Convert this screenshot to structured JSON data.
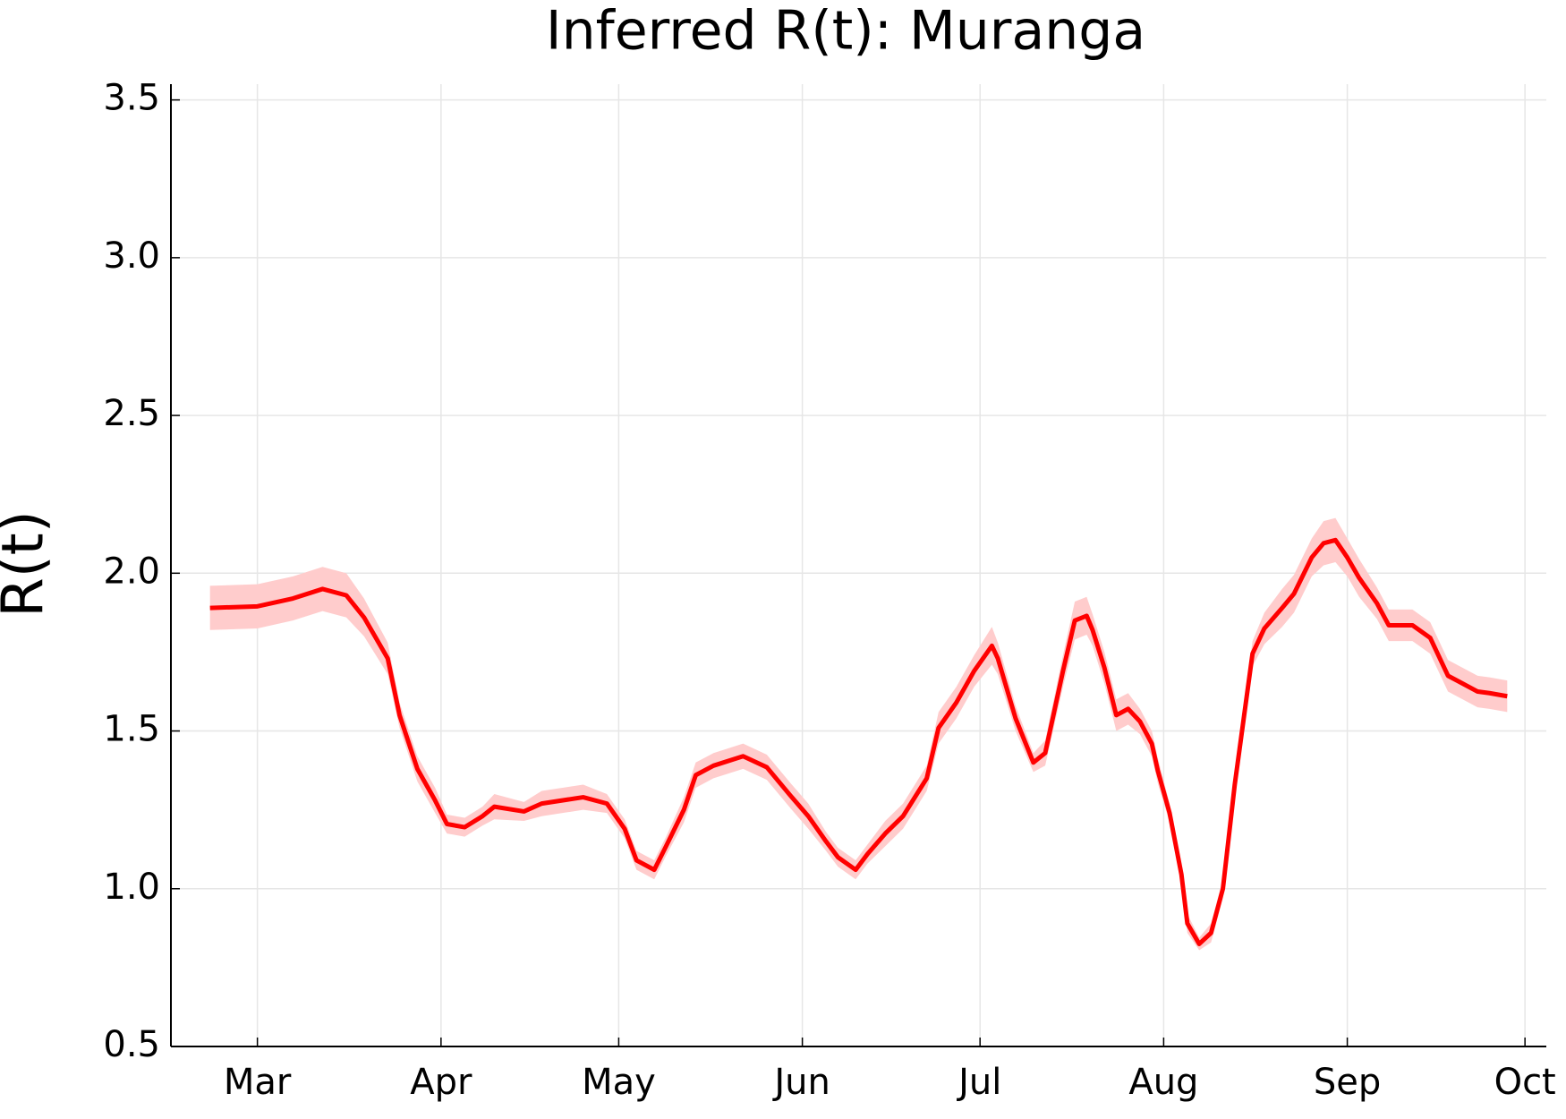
{
  "chart_data": {
    "type": "line",
    "title": "Inferred R(t): Muranga",
    "y_label": "R(t)",
    "color": "#ff0000",
    "band_color": "#ffcccc",
    "grid": true,
    "xlim": [
      -14.6,
      217.6
    ],
    "ylim": [
      0.5,
      3.55
    ],
    "xticks": [
      {
        "value": 0,
        "label": "Mar"
      },
      {
        "value": 31,
        "label": "Apr"
      },
      {
        "value": 61,
        "label": "May"
      },
      {
        "value": 92,
        "label": "Jun"
      },
      {
        "value": 122,
        "label": "Jul"
      },
      {
        "value": 153,
        "label": "Aug"
      },
      {
        "value": 184,
        "label": "Sep"
      },
      {
        "value": 214,
        "label": "Oct"
      }
    ],
    "yticks": [
      0.5,
      {
        "value": 1,
        "label": "1.0"
      },
      1.5,
      {
        "value": 2,
        "label": "2.0"
      },
      2.5,
      {
        "value": 3,
        "label": "3.0"
      },
      3.5
    ],
    "x": [
      -8,
      0,
      6,
      11,
      15,
      18,
      22,
      24,
      27,
      30,
      32,
      35,
      38,
      40,
      45,
      48,
      55,
      59,
      62,
      64,
      67,
      69,
      72,
      74,
      77,
      82,
      86,
      90,
      93,
      96,
      98,
      101,
      103,
      106,
      109,
      113,
      115,
      118,
      121,
      124,
      125,
      128,
      131,
      133,
      136,
      138,
      140,
      141,
      143,
      145,
      147,
      149,
      151,
      152,
      154,
      156,
      157,
      159,
      161,
      163,
      165,
      168,
      170,
      173,
      175,
      178,
      180,
      182,
      184,
      186,
      189,
      191,
      195,
      198,
      201,
      206,
      208,
      211
    ],
    "values": [
      1.89,
      1.895,
      1.92,
      1.95,
      1.93,
      1.86,
      1.73,
      1.55,
      1.38,
      1.28,
      1.205,
      1.195,
      1.23,
      1.26,
      1.245,
      1.27,
      1.29,
      1.27,
      1.19,
      1.09,
      1.06,
      1.135,
      1.25,
      1.36,
      1.39,
      1.42,
      1.385,
      1.295,
      1.23,
      1.15,
      1.1,
      1.06,
      1.11,
      1.175,
      1.23,
      1.35,
      1.51,
      1.59,
      1.69,
      1.77,
      1.73,
      1.54,
      1.4,
      1.43,
      1.69,
      1.85,
      1.865,
      1.82,
      1.7,
      1.55,
      1.57,
      1.53,
      1.46,
      1.375,
      1.24,
      1.045,
      0.89,
      0.825,
      0.86,
      1.0,
      1.33,
      1.745,
      1.825,
      1.89,
      1.935,
      2.05,
      2.095,
      2.105,
      2.05,
      1.985,
      1.905,
      1.835,
      1.835,
      1.795,
      1.675,
      1.625,
      1.62,
      1.61
    ],
    "lower": [
      1.82,
      1.825,
      1.85,
      1.88,
      1.86,
      1.8,
      1.68,
      1.51,
      1.34,
      1.24,
      1.175,
      1.165,
      1.2,
      1.22,
      1.215,
      1.23,
      1.25,
      1.24,
      1.16,
      1.06,
      1.03,
      1.105,
      1.21,
      1.32,
      1.35,
      1.38,
      1.345,
      1.255,
      1.19,
      1.12,
      1.07,
      1.03,
      1.08,
      1.135,
      1.19,
      1.31,
      1.46,
      1.54,
      1.64,
      1.71,
      1.68,
      1.5,
      1.37,
      1.39,
      1.64,
      1.79,
      1.805,
      1.77,
      1.65,
      1.5,
      1.52,
      1.49,
      1.42,
      1.335,
      1.21,
      1.015,
      0.86,
      0.805,
      0.83,
      0.97,
      1.29,
      1.705,
      1.775,
      1.83,
      1.875,
      1.99,
      2.025,
      2.035,
      1.99,
      1.925,
      1.855,
      1.785,
      1.785,
      1.745,
      1.625,
      1.575,
      1.57,
      1.56
    ],
    "upper": [
      1.96,
      1.965,
      1.99,
      2.02,
      2.0,
      1.92,
      1.78,
      1.59,
      1.42,
      1.32,
      1.235,
      1.225,
      1.26,
      1.3,
      1.275,
      1.31,
      1.33,
      1.3,
      1.22,
      1.12,
      1.09,
      1.165,
      1.29,
      1.4,
      1.43,
      1.46,
      1.425,
      1.335,
      1.27,
      1.18,
      1.13,
      1.09,
      1.14,
      1.215,
      1.27,
      1.39,
      1.56,
      1.64,
      1.74,
      1.83,
      1.78,
      1.58,
      1.43,
      1.47,
      1.74,
      1.91,
      1.925,
      1.87,
      1.75,
      1.6,
      1.62,
      1.57,
      1.5,
      1.415,
      1.27,
      1.075,
      0.92,
      0.845,
      0.89,
      1.03,
      1.37,
      1.785,
      1.875,
      1.95,
      1.995,
      2.11,
      2.165,
      2.175,
      2.11,
      2.045,
      1.955,
      1.885,
      1.885,
      1.845,
      1.725,
      1.675,
      1.67,
      1.66
    ]
  }
}
